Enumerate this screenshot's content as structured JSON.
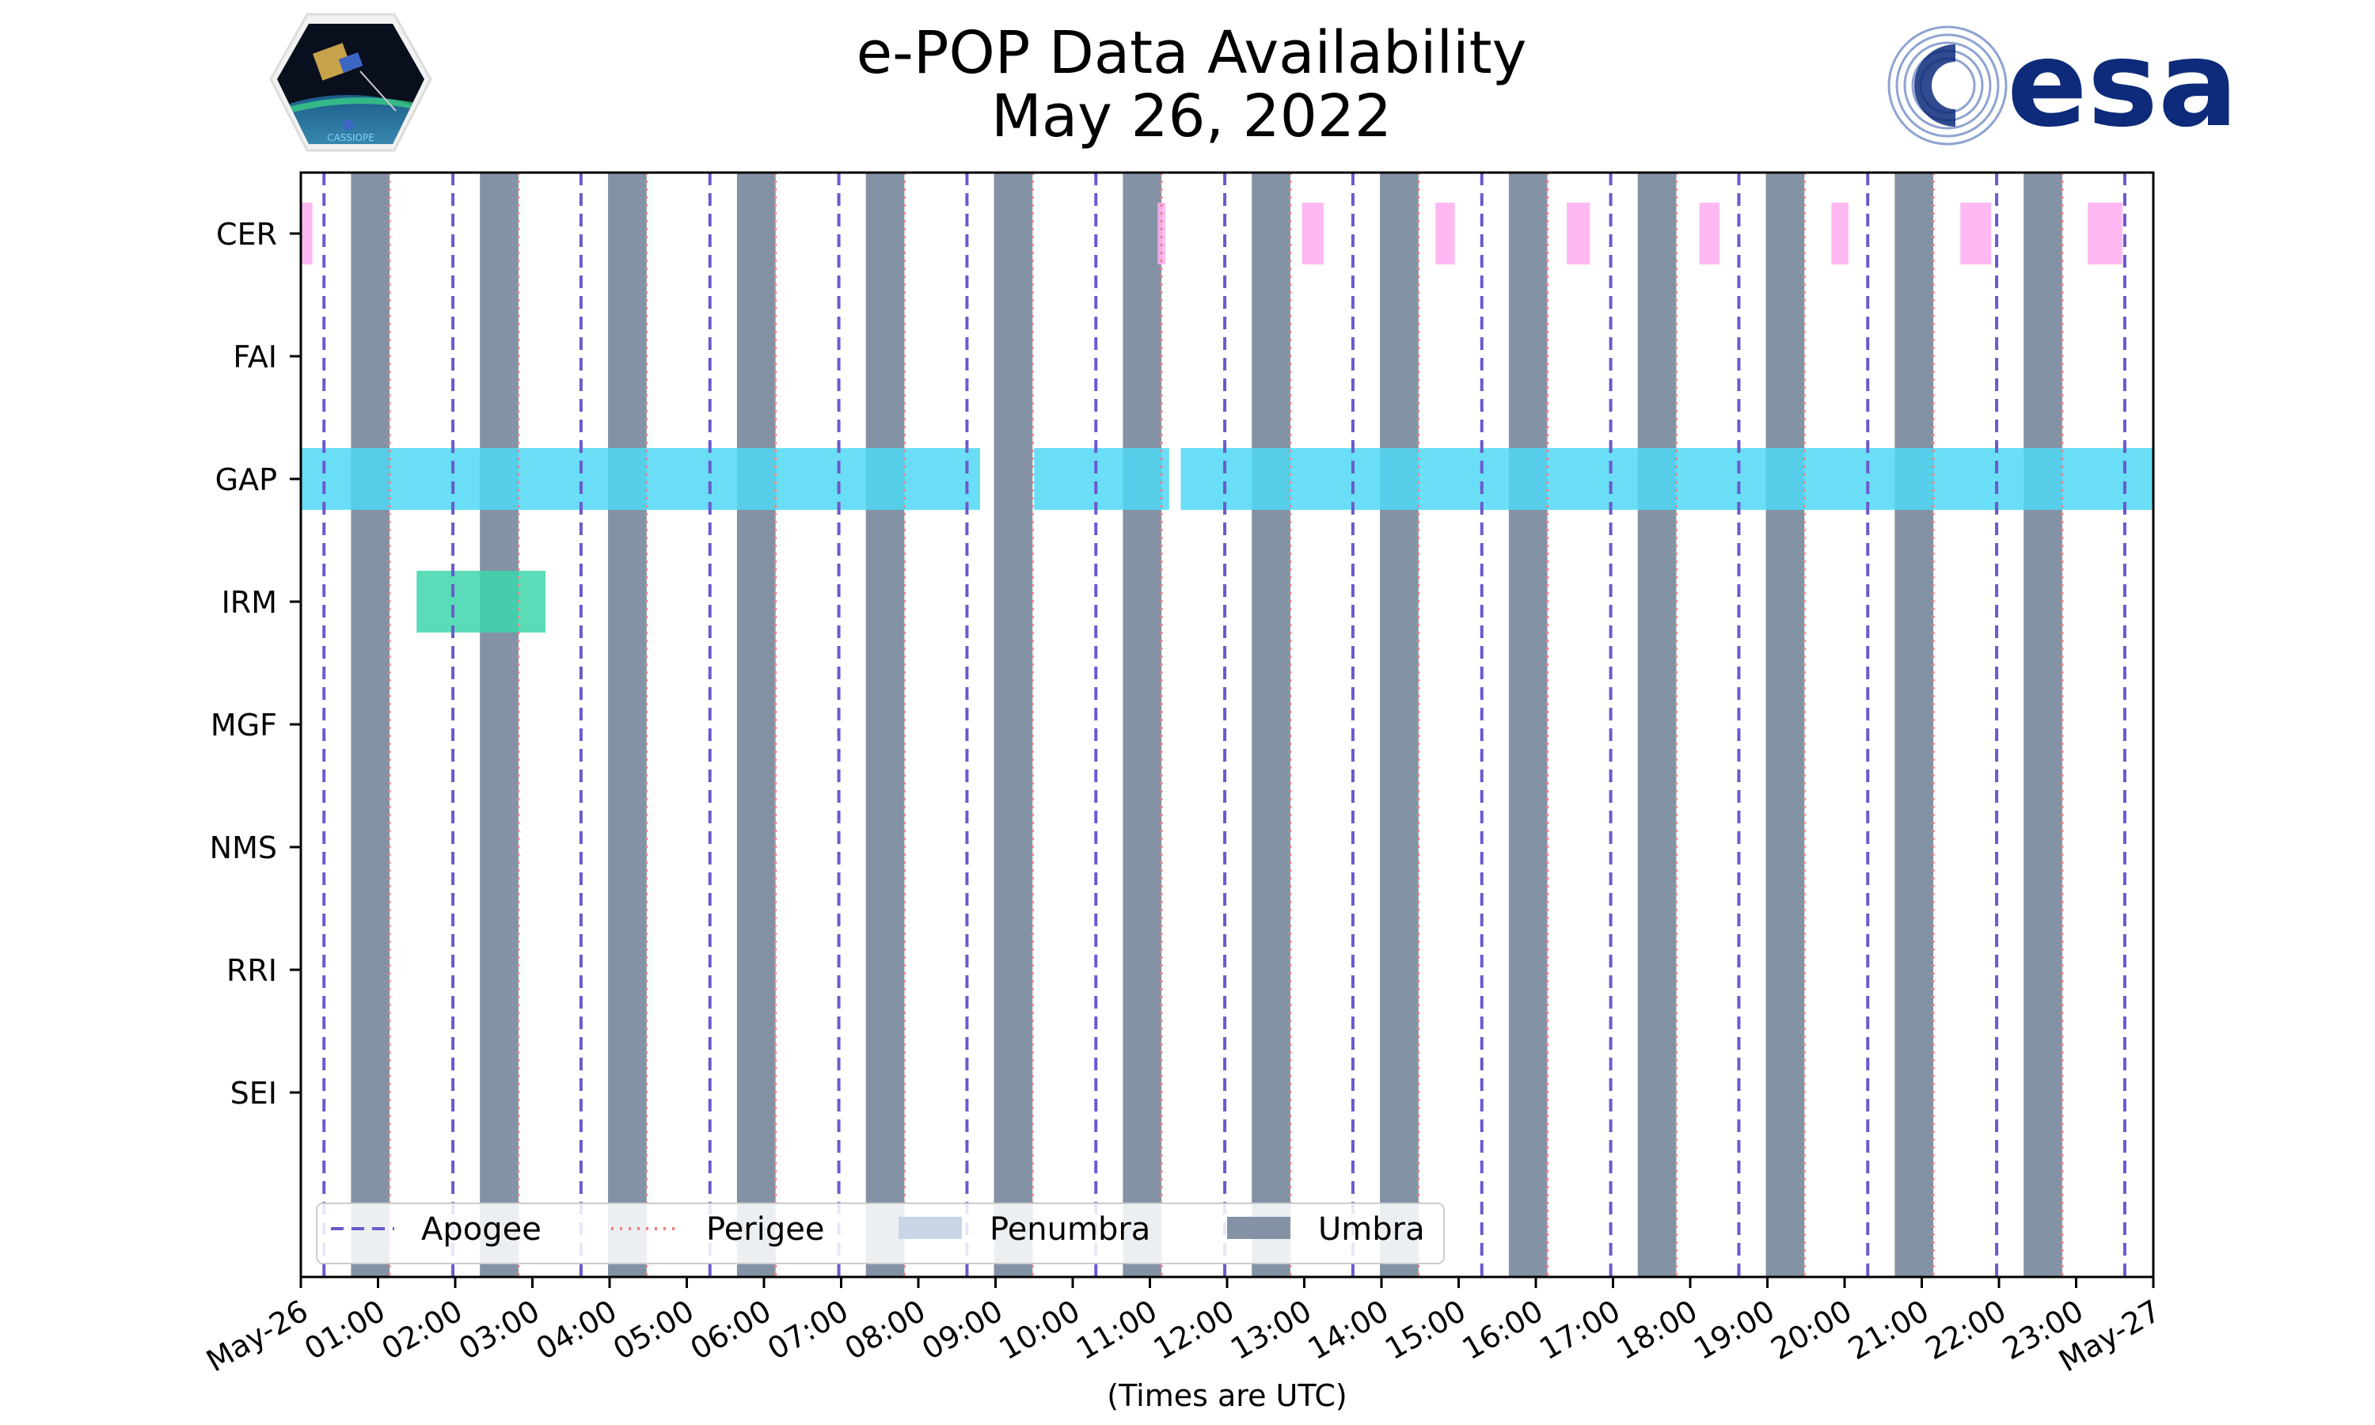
{
  "logos": {
    "left_label": "CASSIOPE",
    "right_label": "esa",
    "right_color": "#0d2b7a"
  },
  "chart_data": {
    "type": "timeline",
    "title": "e-POP Data Availability",
    "subtitle": "May 26, 2022",
    "xlabel": "(Times are UTC)",
    "xlim_hours": [
      0,
      24
    ],
    "x_tick_labels": [
      "May-26",
      "01:00",
      "02:00",
      "03:00",
      "04:00",
      "05:00",
      "06:00",
      "07:00",
      "08:00",
      "09:00",
      "10:00",
      "11:00",
      "12:00",
      "13:00",
      "14:00",
      "15:00",
      "16:00",
      "17:00",
      "18:00",
      "19:00",
      "20:00",
      "21:00",
      "22:00",
      "23:00",
      "May-27"
    ],
    "instruments": [
      "CER",
      "FAI",
      "GAP",
      "IRM",
      "MGF",
      "NMS",
      "RRI",
      "SEI"
    ],
    "colors": {
      "apogee": "#6a5acd",
      "perigee": "#f08080",
      "penumbra": "#c8d6e6",
      "umbra": "#8393a5",
      "CER": "#ffadf0",
      "GAP": "#4fd8f5",
      "IRM": "#3dd6ab"
    },
    "apogee_hours": [
      0.3,
      1.97,
      3.63,
      5.3,
      6.97,
      8.63,
      10.3,
      11.97,
      13.63,
      15.3,
      16.97,
      18.63,
      20.3,
      21.97,
      23.63
    ],
    "perigee_hours": [
      1.15,
      2.82,
      4.48,
      6.15,
      7.82,
      9.48,
      11.15,
      12.82,
      14.48,
      16.15,
      17.82,
      19.48,
      21.15,
      22.82
    ],
    "umbra_intervals": [
      [
        0.65,
        1.15
      ],
      [
        2.32,
        2.82
      ],
      [
        3.98,
        4.48
      ],
      [
        5.65,
        6.15
      ],
      [
        7.32,
        7.82
      ],
      [
        8.98,
        9.48
      ],
      [
        10.65,
        11.15
      ],
      [
        12.32,
        12.82
      ],
      [
        13.98,
        14.48
      ],
      [
        15.65,
        16.15
      ],
      [
        17.32,
        17.82
      ],
      [
        18.98,
        19.48
      ],
      [
        20.65,
        21.15
      ],
      [
        22.32,
        22.82
      ]
    ],
    "penumbra_intervals": [],
    "availability": [
      {
        "instrument": "CER",
        "intervals": [
          [
            0.0,
            0.15
          ],
          [
            11.1,
            11.2
          ],
          [
            12.97,
            13.25
          ],
          [
            14.7,
            14.95
          ],
          [
            16.4,
            16.7
          ],
          [
            18.12,
            18.38
          ],
          [
            19.83,
            20.05
          ],
          [
            21.5,
            21.9
          ],
          [
            23.15,
            23.6
          ]
        ]
      },
      {
        "instrument": "FAI",
        "intervals": []
      },
      {
        "instrument": "GAP",
        "intervals": [
          [
            0.0,
            8.8
          ],
          [
            9.5,
            11.25
          ],
          [
            11.4,
            24.0
          ]
        ]
      },
      {
        "instrument": "IRM",
        "intervals": [
          [
            1.5,
            3.17
          ]
        ]
      },
      {
        "instrument": "MGF",
        "intervals": []
      },
      {
        "instrument": "NMS",
        "intervals": []
      },
      {
        "instrument": "RRI",
        "intervals": []
      },
      {
        "instrument": "SEI",
        "intervals": []
      }
    ],
    "legend": {
      "placement": "lower-center",
      "entries": [
        {
          "label": "Apogee",
          "kind": "apogee"
        },
        {
          "label": "Perigee",
          "kind": "perigee"
        },
        {
          "label": "Penumbra",
          "kind": "penumbra"
        },
        {
          "label": "Umbra",
          "kind": "umbra"
        }
      ]
    }
  }
}
